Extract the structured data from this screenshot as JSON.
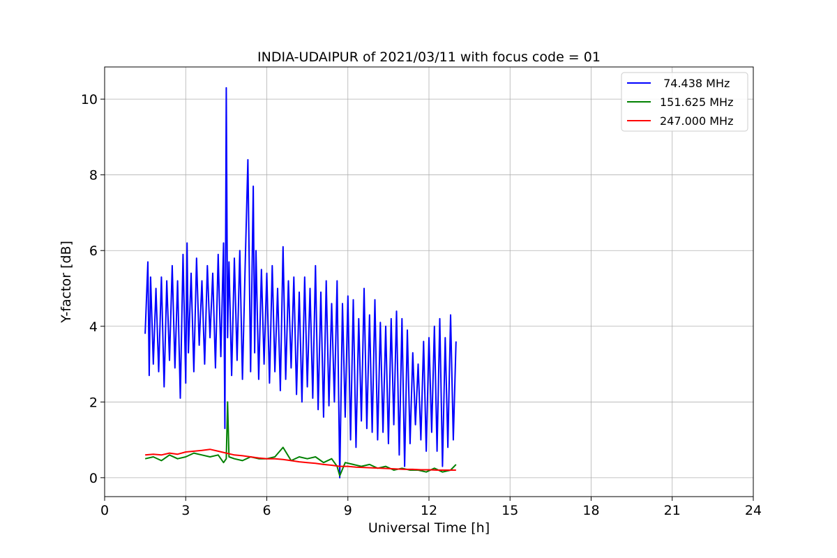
{
  "chart_data": {
    "type": "line",
    "title": "INDIA-UDAIPUR of 2021/03/11 with focus code = 01",
    "xlabel": "Universal Time [h]",
    "ylabel": "Y-factor [dB]",
    "xlim": [
      0,
      24
    ],
    "ylim": [
      -0.5,
      10.85
    ],
    "xticks": [
      0,
      3,
      6,
      9,
      12,
      15,
      18,
      21,
      24
    ],
    "yticks": [
      0,
      2,
      4,
      6,
      8,
      10
    ],
    "grid": true,
    "legend_position": "top-right",
    "series": [
      {
        "name": " 74.438 MHz",
        "color": "#0000ff",
        "x": [
          1.5,
          1.6,
          1.65,
          1.7,
          1.8,
          1.9,
          2.0,
          2.1,
          2.2,
          2.3,
          2.4,
          2.5,
          2.6,
          2.7,
          2.8,
          2.9,
          3.0,
          3.05,
          3.1,
          3.2,
          3.3,
          3.4,
          3.5,
          3.6,
          3.7,
          3.8,
          3.9,
          4.0,
          4.1,
          4.2,
          4.3,
          4.4,
          4.45,
          4.5,
          4.55,
          4.6,
          4.7,
          4.8,
          4.9,
          5.0,
          5.1,
          5.2,
          5.3,
          5.4,
          5.5,
          5.55,
          5.6,
          5.7,
          5.8,
          5.9,
          6.0,
          6.1,
          6.2,
          6.3,
          6.4,
          6.5,
          6.6,
          6.7,
          6.8,
          6.9,
          7.0,
          7.1,
          7.2,
          7.3,
          7.4,
          7.5,
          7.6,
          7.7,
          7.8,
          7.9,
          8.0,
          8.1,
          8.2,
          8.3,
          8.4,
          8.5,
          8.6,
          8.7,
          8.8,
          8.9,
          9.0,
          9.1,
          9.2,
          9.3,
          9.4,
          9.5,
          9.6,
          9.7,
          9.8,
          9.9,
          10.0,
          10.1,
          10.2,
          10.3,
          10.4,
          10.5,
          10.6,
          10.7,
          10.8,
          10.9,
          11.0,
          11.1,
          11.2,
          11.3,
          11.4,
          11.5,
          11.6,
          11.7,
          11.8,
          11.9,
          12.0,
          12.1,
          12.2,
          12.3,
          12.4,
          12.5,
          12.6,
          12.7,
          12.8,
          12.9,
          13.0
        ],
        "y": [
          3.8,
          5.7,
          2.7,
          5.3,
          3.0,
          5.0,
          2.8,
          5.3,
          2.4,
          5.2,
          3.1,
          5.6,
          2.9,
          5.2,
          2.1,
          5.9,
          2.5,
          6.2,
          3.3,
          5.4,
          2.8,
          5.8,
          3.5,
          5.2,
          3.0,
          5.6,
          3.7,
          5.4,
          2.9,
          5.9,
          3.2,
          6.2,
          1.3,
          10.3,
          3.7,
          5.7,
          2.7,
          5.8,
          3.1,
          6.0,
          2.6,
          5.6,
          8.4,
          2.8,
          7.7,
          3.3,
          6.0,
          2.6,
          5.5,
          3.0,
          5.4,
          2.5,
          5.6,
          2.8,
          5.0,
          2.3,
          6.1,
          2.6,
          5.2,
          2.9,
          5.3,
          2.2,
          4.9,
          2.0,
          5.3,
          2.4,
          5.0,
          2.1,
          5.6,
          1.8,
          4.9,
          1.6,
          5.2,
          1.9,
          4.6,
          2.0,
          5.2,
          0.0,
          4.6,
          1.6,
          4.8,
          1.0,
          4.7,
          0.8,
          4.2,
          1.5,
          5.0,
          1.3,
          4.3,
          1.2,
          4.7,
          1.0,
          4.1,
          1.2,
          4.0,
          0.9,
          4.2,
          1.4,
          4.4,
          0.6,
          4.2,
          0.3,
          3.9,
          0.9,
          3.3,
          1.4,
          3.0,
          1.0,
          3.6,
          0.7,
          3.7,
          1.2,
          4.0,
          0.7,
          4.2,
          0.3,
          3.7,
          0.8,
          4.3,
          1.0,
          3.6
        ]
      },
      {
        "name": "151.625 MHz",
        "color": "#008000",
        "x": [
          1.5,
          1.8,
          2.1,
          2.4,
          2.7,
          3.0,
          3.3,
          3.6,
          3.9,
          4.2,
          4.4,
          4.5,
          4.55,
          4.6,
          4.8,
          5.1,
          5.4,
          5.7,
          6.0,
          6.3,
          6.6,
          6.9,
          7.2,
          7.5,
          7.8,
          8.1,
          8.4,
          8.6,
          8.7,
          8.9,
          9.2,
          9.5,
          9.8,
          10.1,
          10.4,
          10.7,
          11.0,
          11.3,
          11.6,
          11.9,
          12.2,
          12.5,
          12.8,
          13.0
        ],
        "y": [
          0.5,
          0.55,
          0.45,
          0.6,
          0.5,
          0.55,
          0.65,
          0.6,
          0.55,
          0.6,
          0.4,
          0.5,
          2.0,
          0.55,
          0.5,
          0.45,
          0.55,
          0.5,
          0.5,
          0.55,
          0.8,
          0.45,
          0.55,
          0.5,
          0.55,
          0.4,
          0.5,
          0.3,
          0.05,
          0.4,
          0.35,
          0.3,
          0.35,
          0.25,
          0.3,
          0.2,
          0.25,
          0.2,
          0.2,
          0.15,
          0.25,
          0.15,
          0.2,
          0.35
        ]
      },
      {
        "name": "247.000 MHz",
        "color": "#ff0000",
        "x": [
          1.5,
          1.8,
          2.1,
          2.4,
          2.7,
          3.0,
          3.3,
          3.6,
          3.9,
          4.2,
          4.5,
          4.8,
          5.1,
          5.4,
          5.7,
          6.0,
          6.3,
          6.6,
          6.9,
          7.2,
          7.5,
          7.8,
          8.1,
          8.4,
          8.7,
          9.0,
          9.3,
          9.6,
          9.9,
          10.2,
          10.5,
          10.8,
          11.1,
          11.4,
          11.7,
          12.0,
          12.3,
          12.6,
          12.9,
          13.0
        ],
        "y": [
          0.6,
          0.62,
          0.6,
          0.65,
          0.62,
          0.68,
          0.7,
          0.72,
          0.75,
          0.7,
          0.65,
          0.6,
          0.58,
          0.55,
          0.52,
          0.5,
          0.5,
          0.48,
          0.45,
          0.42,
          0.4,
          0.38,
          0.35,
          0.33,
          0.3,
          0.3,
          0.28,
          0.27,
          0.26,
          0.25,
          0.24,
          0.23,
          0.22,
          0.22,
          0.21,
          0.21,
          0.2,
          0.2,
          0.2,
          0.2
        ]
      }
    ]
  }
}
